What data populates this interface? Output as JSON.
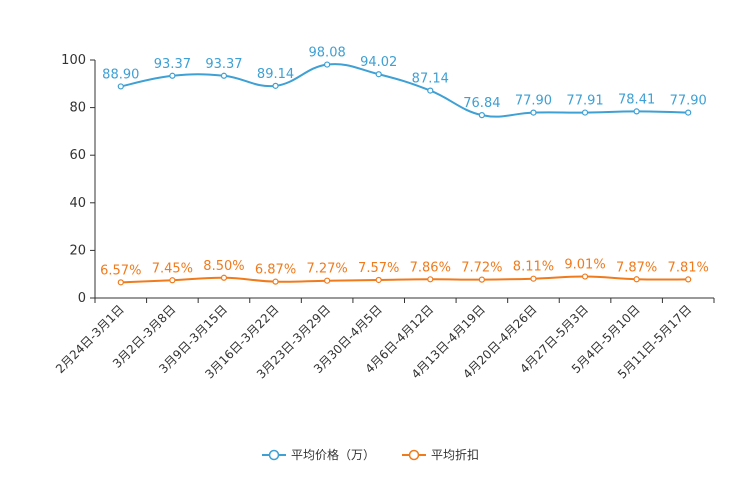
{
  "chart_data": {
    "type": "line",
    "title": "",
    "xlabel": "",
    "ylabel": "",
    "ylim": [
      0,
      100
    ],
    "yticks": [
      "0",
      "20",
      "40",
      "60",
      "80",
      "100"
    ],
    "categories": [
      "2月24日-3月1日",
      "3月2日-3月8日",
      "3月9日-3月15日",
      "3月16日-3月22日",
      "3月23日-3月29日",
      "3月30日-4月5日",
      "4月6日-4月12日",
      "4月13日-4月19日",
      "4月20日-4月26日",
      "4月27日-5月3日",
      "5月4日-5月10日",
      "5月11日-5月17日"
    ],
    "series": [
      {
        "name": "平均价格（万）",
        "color": "#3ea0d4",
        "values": [
          88.9,
          93.37,
          93.37,
          89.14,
          98.08,
          94.02,
          87.14,
          76.84,
          77.9,
          77.91,
          78.41,
          77.9
        ],
        "labels": [
          "88.90",
          "93.37",
          "93.37",
          "89.14",
          "98.08",
          "94.02",
          "87.14",
          "76.84",
          "77.90",
          "77.91",
          "78.41",
          "77.90"
        ]
      },
      {
        "name": "平均折扣",
        "color": "#f07b1d",
        "values": [
          6.57,
          7.45,
          8.5,
          6.87,
          7.27,
          7.57,
          7.86,
          7.72,
          8.11,
          9.01,
          7.87,
          7.81
        ],
        "labels": [
          "6.57%",
          "7.45%",
          "8.50%",
          "6.87%",
          "7.27%",
          "7.57%",
          "7.86%",
          "7.72%",
          "8.11%",
          "9.01%",
          "7.87%",
          "7.81%"
        ]
      }
    ],
    "legend": {
      "position": "bottom"
    },
    "grid": false,
    "axis_color": "#333333"
  }
}
